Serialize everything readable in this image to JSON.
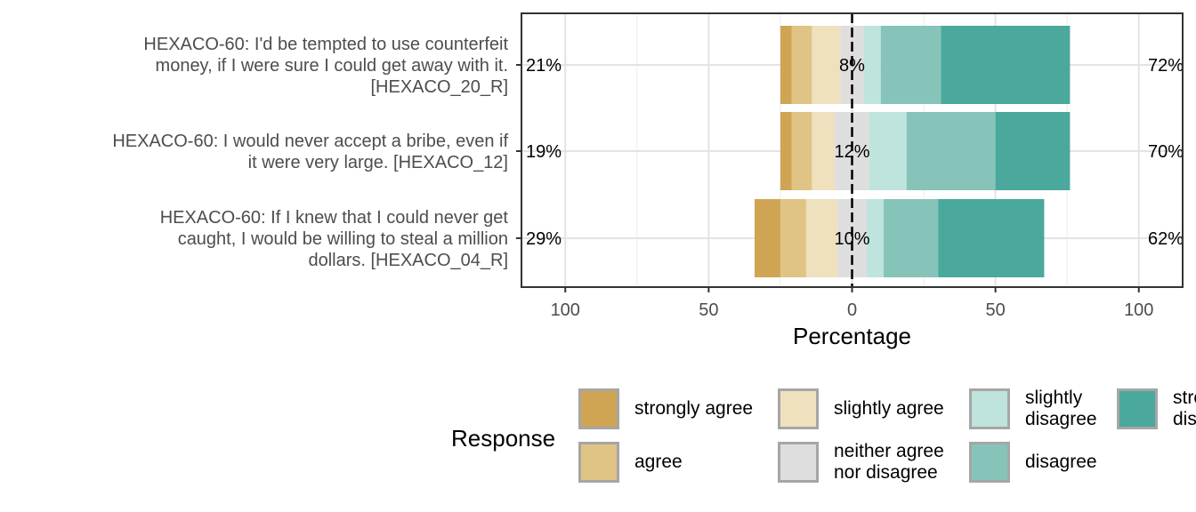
{
  "chart_data": {
    "type": "bar",
    "orientation": "horizontal",
    "stacked": true,
    "diverging": true,
    "xlabel": "Percentage",
    "xlim": [
      -115,
      115
    ],
    "xticks": [
      -100,
      -50,
      0,
      50,
      100
    ],
    "xtick_labels": [
      "100",
      "50",
      "0",
      "50",
      "100"
    ],
    "grid": true,
    "legend_position": "bottom",
    "legend_title": "Response",
    "categories": [
      "HEXACO-60: I'd be tempted to use counterfeit money, if I were sure I could get away with it. [HEXACO_20_R]",
      "HEXACO-60: I would never accept a bribe, even if it were very large. [HEXACO_12]",
      "HEXACO-60: If I knew that I could never get caught, I would be willing to steal a million dollars. [HEXACO_04_R]"
    ],
    "category_lines": [
      [
        "HEXACO-60: I'd be tempted to use counterfeit",
        "money, if I were sure I could get away with it.",
        "[HEXACO_20_R]"
      ],
      [
        "HEXACO-60: I would never accept a bribe, even if",
        "it were very large. [HEXACO_12]"
      ],
      [
        "HEXACO-60: If I knew that I could never get",
        "caught, I would be willing to steal a million",
        "dollars. [HEXACO_04_R]"
      ]
    ],
    "series": [
      {
        "name": "strongly agree",
        "color": "#CFA554",
        "values": [
          4,
          4,
          9
        ]
      },
      {
        "name": "agree",
        "color": "#E0C485",
        "values": [
          7,
          7,
          9
        ]
      },
      {
        "name": "slightly agree",
        "color": "#EFE0BE",
        "values": [
          10,
          8,
          11
        ]
      },
      {
        "name": "neither agree nor disagree",
        "color": "#DEDEDE",
        "values": [
          8,
          12,
          10
        ]
      },
      {
        "name": "slightly disagree",
        "color": "#BFE3DD",
        "values": [
          6,
          13,
          6
        ]
      },
      {
        "name": "disagree",
        "color": "#86C4B9",
        "values": [
          21,
          31,
          19
        ]
      },
      {
        "name": "strongly disagree",
        "color": "#4AA89C",
        "values": [
          45,
          26,
          37
        ]
      }
    ],
    "left_percent_labels": [
      "21%",
      "19%",
      "29%"
    ],
    "center_percent_labels": [
      "8%",
      "12%",
      "10%"
    ],
    "right_percent_labels": [
      "72%",
      "70%",
      "62%"
    ]
  },
  "legend": {
    "title": "Response",
    "items": [
      {
        "label": "strongly agree",
        "color": "#CFA554"
      },
      {
        "label": "agree",
        "color": "#E0C485"
      },
      {
        "label": "slightly agree",
        "color": "#EFE0BE"
      },
      {
        "label": "neither agree\nnor disagree",
        "color": "#DEDEDE"
      },
      {
        "label": "slightly\ndisagree",
        "color": "#BFE3DD"
      },
      {
        "label": "disagree",
        "color": "#86C4B9"
      },
      {
        "label": "strongly\ndisagree",
        "color": "#4AA89C"
      }
    ]
  }
}
